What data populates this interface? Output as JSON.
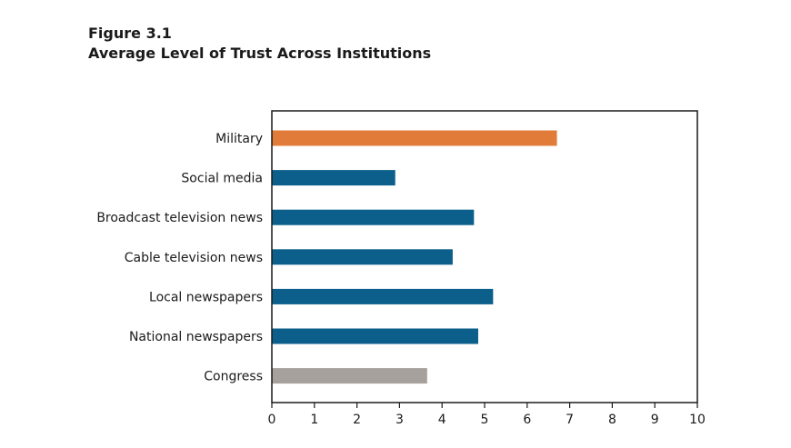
{
  "figure": {
    "number": "Figure 3.1",
    "title": "Average Level of Trust Across Institutions"
  },
  "chart_data": {
    "type": "bar",
    "orientation": "horizontal",
    "title": "Average Level of Trust Across Institutions",
    "xlabel": "",
    "ylabel": "",
    "xlim": [
      0,
      10
    ],
    "xticks": [
      0,
      1,
      2,
      3,
      4,
      5,
      6,
      7,
      8,
      9,
      10
    ],
    "grid": false,
    "categories": [
      "Military",
      "Social media",
      "Broadcast television news",
      "Cable television news",
      "Local newspapers",
      "National newspapers",
      "Congress"
    ],
    "values": [
      6.7,
      2.9,
      4.75,
      4.25,
      5.2,
      4.85,
      3.65
    ],
    "bar_colors": [
      "#e07b39",
      "#0b5f8a",
      "#0b5f8a",
      "#0b5f8a",
      "#0b5f8a",
      "#0b5f8a",
      "#a7a19d"
    ]
  }
}
